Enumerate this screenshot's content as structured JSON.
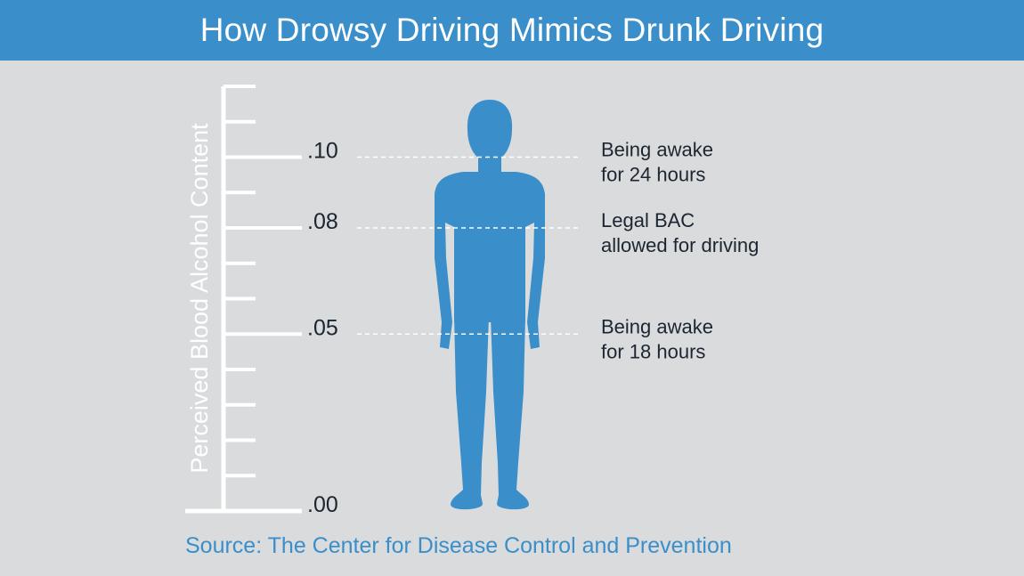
{
  "header": {
    "title": "How Drowsy Driving Mimics Drunk Driving"
  },
  "chart_data": {
    "type": "scale",
    "ylabel": "Perceived Blood Alcohol Content",
    "ylim": [
      0,
      0.12
    ],
    "minor_step": 0.01,
    "tick_labels": [
      {
        "value": 0.1,
        "label": ".10"
      },
      {
        "value": 0.08,
        "label": ".08"
      },
      {
        "value": 0.05,
        "label": ".05"
      },
      {
        "value": 0.0,
        "label": ".00"
      }
    ],
    "markers": [
      {
        "value": 0.1,
        "lines": [
          "Being awake",
          "for 24 hours"
        ]
      },
      {
        "value": 0.08,
        "lines": [
          "Legal BAC",
          "allowed for driving"
        ]
      },
      {
        "value": 0.05,
        "lines": [
          "Being awake",
          "for 18 hours"
        ]
      }
    ],
    "colors": {
      "axis": "#ffffff",
      "figure": "#3a8fca",
      "label": "#1c2530"
    }
  },
  "figure": {
    "icon": "person-silhouette-icon"
  },
  "source": {
    "text": "Source: The Center for Disease Control and Prevention"
  }
}
